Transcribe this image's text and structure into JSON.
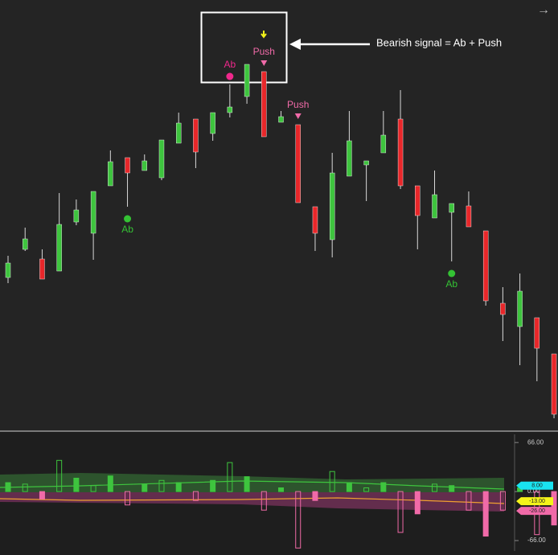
{
  "chart_data": {
    "type": "candlestick",
    "annotation": "Bearish signal = Ab + Push",
    "corner_icon": "→",
    "ylim": [
      0,
      107
    ],
    "up_color": "#3ec43e",
    "down_color": "#e8272a",
    "open": [
      38,
      45,
      42.6,
      39.6,
      51.8,
      49,
      60.8,
      67.8,
      64.6,
      62.8,
      71.4,
      77.4,
      73.8,
      79,
      83,
      89.2,
      76.6,
      76,
      55.6,
      47.4,
      63.2,
      66,
      69,
      77.4,
      60.8,
      52.8,
      54.2,
      55.8,
      49.6,
      31.6,
      25.8,
      28,
      19
    ],
    "high": [
      43.4,
      50.4,
      45,
      59,
      57.4,
      59.4,
      69.6,
      67.8,
      68.6,
      72.2,
      79,
      77.4,
      79,
      86,
      91,
      89.2,
      79.4,
      76,
      55.6,
      69,
      79.4,
      67,
      79.4,
      84.6,
      60.8,
      64.6,
      56.4,
      59.4,
      49.6,
      35.6,
      39,
      28,
      19
    ],
    "low": [
      36.6,
      44.6,
      37.6,
      39.6,
      51,
      42.4,
      60.8,
      55.6,
      64.6,
      62.2,
      71.4,
      65.2,
      72,
      77.8,
      81.2,
      73,
      76.6,
      56.6,
      44.6,
      43,
      63.2,
      57,
      69,
      60,
      45,
      52.8,
      42,
      50.6,
      31,
      22.2,
      16.2,
      12.2,
      3
    ],
    "close": [
      41.6,
      47.6,
      37.6,
      51.2,
      54.8,
      59.4,
      66.8,
      64,
      67,
      72.2,
      76.4,
      69.2,
      79,
      80.4,
      91,
      73,
      78,
      56.6,
      49,
      64,
      72,
      67,
      73.4,
      60.8,
      53.4,
      58.6,
      56.4,
      50.6,
      32.2,
      28.8,
      34.6,
      20.4,
      4
    ],
    "signals": [
      {
        "index": 7,
        "label": "Ab",
        "color": "#34c234",
        "position": "below",
        "marker": "dot"
      },
      {
        "index": 26,
        "label": "Ab",
        "color": "#34c234",
        "position": "below",
        "marker": "dot"
      },
      {
        "index": 13,
        "label": "Ab",
        "color": "#f0288c",
        "position": "above",
        "marker": "dot"
      },
      {
        "index": 15,
        "label": "Push",
        "color": "#f06aa8",
        "position": "above",
        "marker": "triangle"
      },
      {
        "index": 17,
        "label": "Push",
        "color": "#f06aa8",
        "position": "above",
        "marker": "triangle"
      }
    ],
    "oscillator": {
      "ylim": [
        -80,
        77
      ],
      "yticks": [
        {
          "value": 66,
          "label": "66.00"
        },
        {
          "value": 0,
          "label": "0.00"
        },
        {
          "value": -66,
          "label": "-66.00"
        }
      ],
      "values": [
        12,
        10,
        -10,
        42,
        18,
        8,
        21,
        -18,
        10,
        15,
        12,
        -12,
        15,
        39,
        20,
        -25,
        5,
        -76,
        -12,
        27,
        12,
        5,
        12,
        -55,
        -30,
        10,
        8,
        -25,
        -60,
        -25,
        5,
        -58,
        -45
      ],
      "badges": [
        {
          "value": 8,
          "label": "8.00",
          "color": "#19e3f0"
        },
        {
          "value": -13,
          "label": "-13.00",
          "color": "#f4f41a"
        },
        {
          "value": -26,
          "label": "-26.00",
          "color": "#f06aa8"
        }
      ]
    }
  }
}
